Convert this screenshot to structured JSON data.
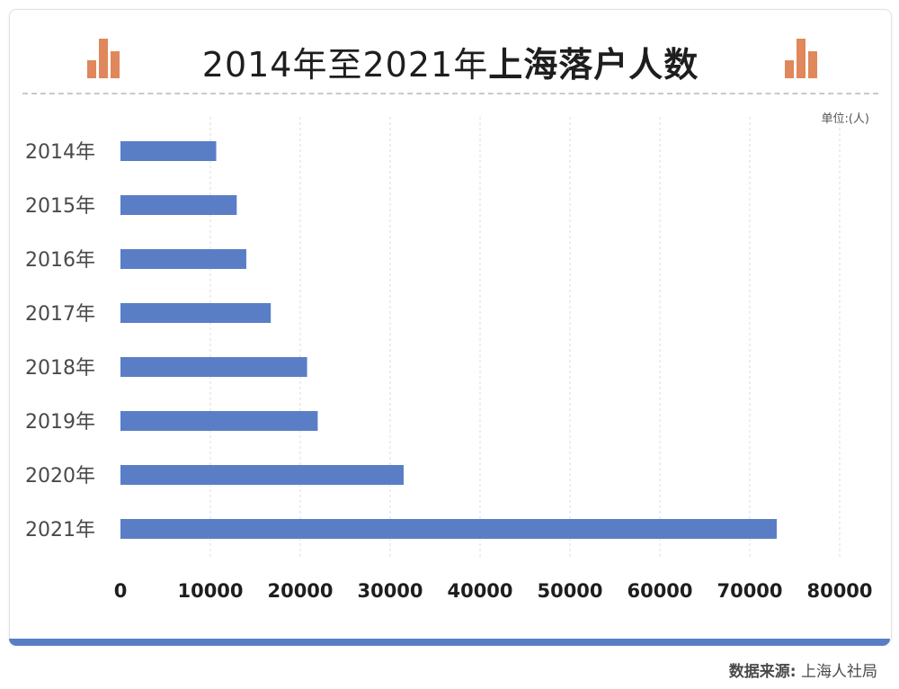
{
  "header": {
    "title_part1": "2014年至2021年",
    "title_part2": "上海落户人数"
  },
  "unit_label": "单位:(人)",
  "source": {
    "label": "数据来源:",
    "value": "上海人社局"
  },
  "colors": {
    "bar": "#5a7ec6",
    "accent": "#e0875c",
    "grid": "#dcdcdc",
    "bottom_bar": "#5a7ec6"
  },
  "chart_data": {
    "type": "bar",
    "orientation": "horizontal",
    "categories": [
      "2014年",
      "2015年",
      "2016年",
      "2017年",
      "2018年",
      "2019年",
      "2020年",
      "2021年"
    ],
    "values": [
      10653,
      12934,
      13996,
      16720,
      20758,
      21940,
      31498,
      73000
    ],
    "xlim": [
      0,
      80000
    ],
    "x_ticks": [
      "0",
      "10000",
      "20000",
      "30000",
      "40000",
      "50000",
      "60000",
      "70000",
      "80000"
    ],
    "grid": true,
    "legend": "none"
  }
}
